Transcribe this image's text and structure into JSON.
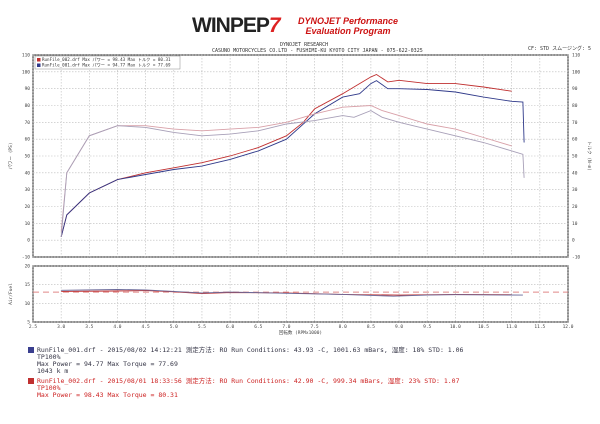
{
  "header": {
    "logo": "WINPEP",
    "logo_mark": "7",
    "program_line1": "DYNOJET Performance",
    "program_line2": "Evaluation Program",
    "company_line1": "DYNOJET  RESEARCH",
    "company_line2": "CASUNO MOTORCYCLES CO.LTD - FUSHIMI-KU KYOTO CITY JAPAN - 075-622-0325",
    "correction": "CF: STD  スムージング: 5"
  },
  "legend": [
    {
      "text": "RunFile_002.drf Max パワー = 98.43    Max トルク = 80.31",
      "color": "#c03030"
    },
    {
      "text": "RunFile_001.drf Max パワー = 94.77    Max トルク = 77.69",
      "color": "#303a8a"
    }
  ],
  "runs": [
    {
      "line1": "RunFile_001.drf - 2015/08/02 14:12:21  測定方法: RO  Run Conditions: 43.93 -C, 1001.63 mBars,  湿度: 18%  STD: 1.06",
      "line2": "TP100%",
      "line3": "Max Power = 94.77  Max Torque = 77.69",
      "line4": "1043 k m",
      "color": "#3a3f8f"
    },
    {
      "line1": "RunFile_002.drf - 2015/08/01 18:33:56  測定方法: RO  Run Conditions: 42.90 -C, 999.34 mBars,  湿度: 23%  STD: 1.07",
      "line2": "TP100%",
      "line3": "Max Power = 98.43  Max Torque = 80.31",
      "color": "#c03030"
    }
  ],
  "chart_data": [
    {
      "type": "line",
      "ylabel": "パワー (PS)",
      "y2label": "トルク (N-m)",
      "ylim": [
        -10,
        110
      ],
      "y2lim": [
        -10,
        110
      ],
      "xlim": [
        2.5,
        12.0
      ],
      "xticks": [
        "2.5",
        "3.0",
        "3.5",
        "4.0",
        "4.5",
        "5.0",
        "5.5",
        "6.0",
        "6.5",
        "7.0",
        "7.5",
        "8.0",
        "8.5",
        "9.0",
        "9.5",
        "10.0",
        "10.5",
        "11.0",
        "11.5",
        "12.0"
      ],
      "yticks": [
        "-10",
        "0",
        "10",
        "20",
        "30",
        "40",
        "50",
        "60",
        "70",
        "80",
        "90",
        "100",
        "110"
      ],
      "grid": true,
      "legend_position": "top-left",
      "series": [
        {
          "name": "RunFile_002.drf パワー",
          "color": "#c03030",
          "x": [
            3.0,
            3.1,
            3.5,
            4.0,
            4.5,
            5.0,
            5.5,
            6.0,
            6.5,
            7.0,
            7.3,
            7.5,
            8.0,
            8.3,
            8.5,
            8.6,
            8.8,
            9.0,
            9.5,
            10.0,
            10.5,
            11.0
          ],
          "y": [
            2,
            15,
            28,
            36,
            40,
            43,
            46,
            50,
            55,
            62,
            70,
            78,
            87,
            93,
            97,
            98.4,
            94,
            95,
            93,
            93,
            91,
            88.5
          ]
        },
        {
          "name": "RunFile_001.drf パワー",
          "color": "#303a8a",
          "x": [
            3.0,
            3.1,
            3.5,
            4.0,
            4.5,
            5.0,
            5.5,
            6.0,
            6.5,
            7.0,
            7.5,
            8.0,
            8.3,
            8.5,
            8.6,
            8.8,
            9.0,
            9.5,
            10.0,
            10.5,
            11.0,
            11.2,
            11.22
          ],
          "y": [
            2,
            15,
            28,
            36,
            39,
            42,
            44,
            48,
            53,
            60,
            75,
            85,
            87,
            93,
            94.8,
            90,
            90,
            89.5,
            88,
            85,
            82.5,
            82,
            58
          ]
        },
        {
          "name": "RunFile_002.drf トルク",
          "color": "#d8a0a8",
          "x": [
            3.0,
            3.1,
            3.5,
            4.0,
            4.5,
            5.0,
            5.5,
            6.0,
            6.5,
            7.0,
            7.5,
            8.0,
            8.5,
            8.7,
            9.0,
            9.5,
            10.0,
            10.5,
            11.0
          ],
          "y": [
            5,
            40,
            62,
            68,
            68,
            66,
            65,
            66,
            67,
            70,
            75,
            79,
            80,
            77,
            74,
            69,
            66,
            61,
            56
          ]
        },
        {
          "name": "RunFile_001.drf トルク",
          "color": "#a8a0b8",
          "x": [
            3.0,
            3.1,
            3.5,
            4.0,
            4.5,
            5.0,
            5.5,
            6.0,
            6.5,
            7.0,
            7.5,
            8.0,
            8.2,
            8.5,
            8.7,
            9.0,
            9.5,
            10.0,
            10.5,
            11.0,
            11.2,
            11.22
          ],
          "y": [
            2,
            40,
            62,
            68,
            67,
            64,
            62,
            63,
            65,
            69,
            71,
            74,
            73,
            77,
            73,
            70,
            66,
            62,
            58,
            53,
            51,
            37
          ]
        }
      ]
    },
    {
      "type": "line",
      "ylabel": "Air/Fuel",
      "xlabel": "回転数 (RPMx1000)",
      "ylim": [
        5,
        20
      ],
      "xlim": [
        2.5,
        12.0
      ],
      "yticks": [
        "5",
        "10",
        "15",
        "20"
      ],
      "grid": true,
      "reference_line": 13.0,
      "series": [
        {
          "name": "RunFile_002.drf A/F",
          "color": "#c03030",
          "x": [
            3.0,
            4.0,
            4.5,
            5.0,
            5.5,
            6.0,
            7.0,
            8.0,
            9.0,
            10.0,
            11.0
          ],
          "y": [
            13.2,
            13.3,
            13.4,
            13.1,
            12.6,
            12.9,
            12.8,
            12.4,
            12.2,
            12.4,
            12.3
          ]
        },
        {
          "name": "RunFile_001.drf A/F",
          "color": "#6a6a9a",
          "x": [
            3.0,
            4.0,
            4.5,
            5.0,
            5.5,
            6.0,
            7.0,
            8.0,
            8.9,
            9.5,
            10.0,
            11.2
          ],
          "y": [
            13.5,
            13.7,
            13.6,
            13.2,
            12.8,
            13.0,
            12.7,
            12.4,
            11.9,
            12.2,
            12.3,
            12.2
          ]
        }
      ]
    }
  ]
}
